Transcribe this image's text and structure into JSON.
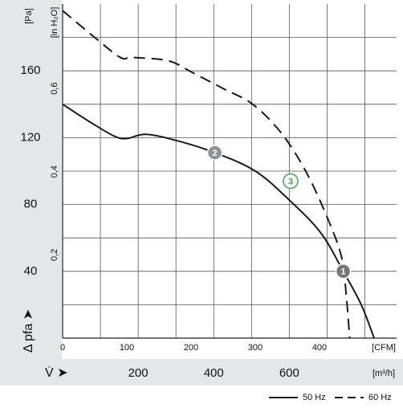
{
  "chart_data": {
    "type": "line",
    "ylabel": "Δ pfa ➤",
    "xlabel": "V̇ ➤",
    "yunit": "[Pa]",
    "y3unit": "[in H₂O]",
    "xunit": "[CFM]",
    "x2unit": "[m³/h]",
    "xlim": [
      0,
      520
    ],
    "xticks": [
      0,
      100,
      200,
      300,
      400
    ],
    "x2lim": [
      0,
      884
    ],
    "x2ticks": [
      200,
      400,
      600
    ],
    "x2grid": [
      100,
      200,
      300,
      400,
      500,
      600,
      700,
      800
    ],
    "ylim": [
      0,
      200
    ],
    "yticks": [
      40,
      80,
      120,
      160
    ],
    "ygrid": [
      20,
      40,
      60,
      80,
      100,
      120,
      140,
      160,
      180
    ],
    "y3lim": [
      0,
      0.803
    ],
    "y3ticks": [
      {
        "value": 0.2,
        "label": "0,2"
      },
      {
        "value": 0.4,
        "label": "0,4"
      },
      {
        "value": 0.6,
        "label": "0,6"
      }
    ],
    "grid": true,
    "legend": "bottom-right",
    "series": [
      {
        "name": "50 Hz",
        "color": "#1a1a1a",
        "dashed": false,
        "x": [
          0,
          40,
          80,
          100,
          130,
          180,
          237,
          300,
          352,
          402,
          437,
          465,
          485
        ],
        "values": [
          140,
          130,
          121,
          119.5,
          122,
          118,
          111,
          100,
          83,
          63,
          40,
          20,
          0
        ]
      },
      {
        "name": "60 Hz",
        "color": "#1a1a1a",
        "dashed": true,
        "x": [
          0,
          50,
          90,
          109,
          165,
          202,
          252,
          296,
          340,
          377,
          409,
          434,
          442,
          447
        ],
        "values": [
          196,
          180,
          168,
          168,
          166,
          159,
          149,
          140,
          123,
          101,
          75,
          49,
          24,
          0
        ]
      }
    ],
    "points": [
      {
        "label": "1",
        "x": 437,
        "y": 40,
        "color": "#777777",
        "filled": true
      },
      {
        "label": "2",
        "x": 237,
        "y": 111,
        "color": "#8a9499",
        "filled": true
      },
      {
        "label": "3",
        "x": 355,
        "y": 94,
        "color": "#3aa64a",
        "filled": false
      }
    ]
  }
}
